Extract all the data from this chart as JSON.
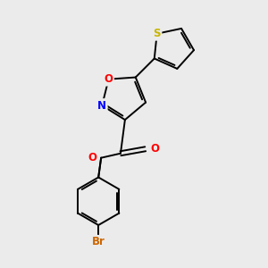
{
  "background_color": "#ebebeb",
  "bond_color": "#000000",
  "atom_colors": {
    "S": "#c8b400",
    "O": "#ff0000",
    "N": "#0000ff",
    "Br": "#cc6600",
    "C": "#000000"
  },
  "figsize": [
    3.0,
    3.0
  ],
  "dpi": 100
}
